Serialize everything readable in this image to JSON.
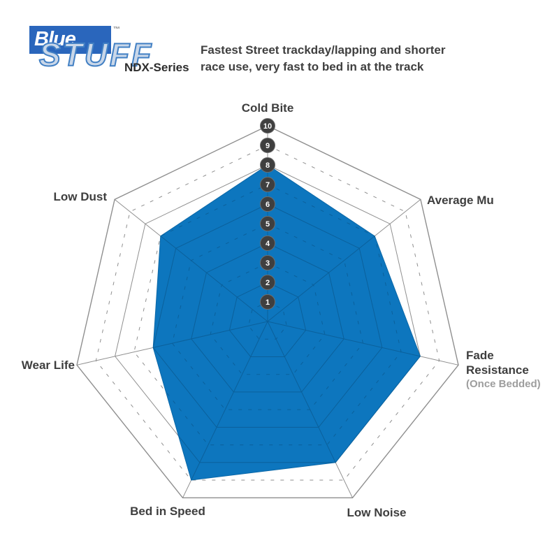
{
  "logo": {
    "brand_line1": "Blue",
    "brand_line2": "STUFF",
    "trademark": "™",
    "series": "NDX-Series"
  },
  "header": {
    "line1": "Fastest Street trackday/lapping and shorter",
    "line2": "race use, very fast to bed in at the track"
  },
  "chart_data": {
    "type": "radar",
    "title": "EBC Bluestuff NDX-Series brake pad performance",
    "max": 10,
    "scale_ticks": [
      1,
      2,
      3,
      4,
      5,
      6,
      7,
      8,
      9,
      10
    ],
    "grid": "heptagon rings 1-10, odd rings dashed, even rings solid, legend none",
    "axes": [
      {
        "label": "Cold Bite",
        "value": 8
      },
      {
        "label": "Average Mu",
        "value": 7
      },
      {
        "label": "Fade Resistance",
        "sublabel": "(Once Bedded)",
        "value": 8
      },
      {
        "label": "Low Noise",
        "value": 8
      },
      {
        "label": "Bed in Speed",
        "value": 9
      },
      {
        "label": "Wear Life",
        "value": 6
      },
      {
        "label": "Low Dust",
        "value": 7
      }
    ],
    "colors": {
      "fill": "#0d76be",
      "fill_edge": "#0b68a8",
      "grid_outer": "#8f8f8f",
      "grid_inner": "#0b609b",
      "tick_circle": "#3f3f3f",
      "tick_circle_ring": "#6e6e6e",
      "tick_text": "#ffffff",
      "logo_blue": "#2a66bc"
    }
  }
}
